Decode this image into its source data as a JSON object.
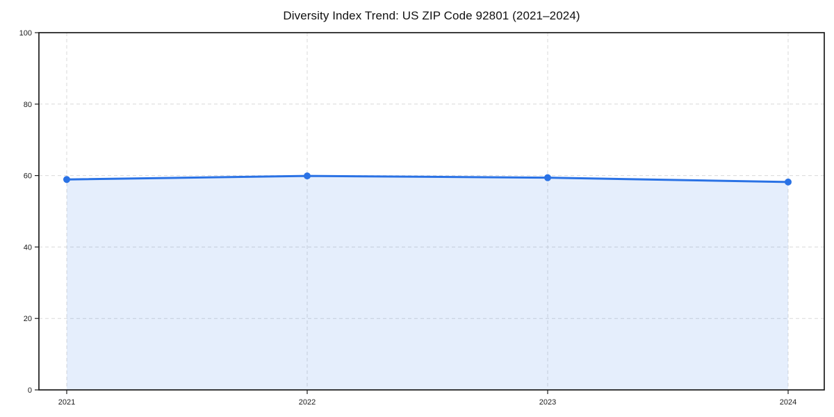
{
  "chart_data": {
    "type": "area",
    "title": "Diversity Index Trend: US ZIP Code 92801 (2021–2024)",
    "categories": [
      "2021",
      "2022",
      "2023",
      "2024"
    ],
    "series": [
      {
        "name": "Diversity Index",
        "values": [
          58.9,
          59.9,
          59.4,
          58.2
        ]
      }
    ],
    "xlabel": "",
    "ylabel": "",
    "ylim": [
      0,
      100
    ],
    "yticks": [
      0,
      20,
      40,
      60,
      80,
      100
    ],
    "grid": true,
    "grid_style": "dashed",
    "legend": false,
    "marker": "circle",
    "colors": {
      "line": "#2a72e5",
      "fill_opacity": 0.12,
      "gridline": "#d9d9d9",
      "axis": "#1a1a1a",
      "title_text": "#111111",
      "tick_text": "#1a1a1a",
      "background": "#ffffff"
    }
  }
}
